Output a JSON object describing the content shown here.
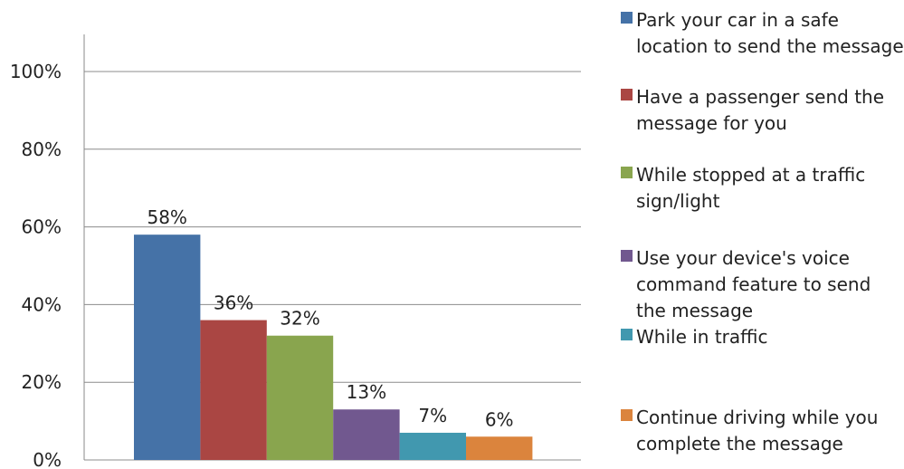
{
  "chart_data": {
    "type": "bar",
    "categories": [
      "Park your car in a safe location to send the message",
      "Have a passenger send the message for you",
      "While stopped at a traffic sign/light",
      "Use your device's voice command feature to send the message",
      "While in traffic",
      "Continue driving while you complete the message"
    ],
    "values": [
      58,
      36,
      32,
      13,
      7,
      6
    ],
    "data_labels": [
      "58%",
      "36%",
      "32%",
      "13%",
      "7%",
      "6%"
    ],
    "colors": [
      "#4572A7",
      "#AA4643",
      "#89A54E",
      "#71588F",
      "#4198AF",
      "#DB843D"
    ],
    "ylim": [
      0,
      100
    ],
    "y_ticks": [
      "0%",
      "20%",
      "40%",
      "60%",
      "80%",
      "100%"
    ],
    "y_tick_values": [
      0,
      20,
      40,
      60,
      80,
      100
    ],
    "grid": true,
    "legend_position": "right"
  }
}
